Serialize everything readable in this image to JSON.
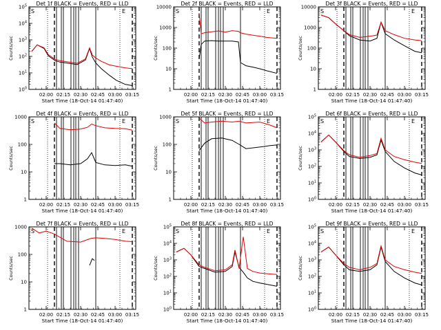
{
  "figure": {
    "xtick_labels": [
      "02:00",
      "02:15",
      "02:30",
      "02:45",
      "03:00",
      "03:15"
    ],
    "xlabel": "Start Time (18-Oct-14 01:47:40)",
    "ylabel": "Counts/sec",
    "colors": {
      "events": "#000000",
      "lld": "#e00000"
    }
  },
  "chart_data": [
    {
      "type": "line",
      "title": "Det 1f BLACK = Events, RED = LLD",
      "yscale": "log",
      "ylim_exp": [
        0,
        5
      ],
      "ytick_labels": [
        "10^0",
        "10^1",
        "10^2",
        "10^3",
        "10^4",
        "10^5"
      ],
      "panel_letters": [
        "S",
        "E"
      ],
      "dotted_lines": [
        2.02,
        3.07
      ],
      "dashed_lines": [
        2.12,
        3.25
      ],
      "solid_lines": [
        2.15,
        2.22,
        2.25,
        2.36,
        2.4,
        2.43,
        2.47,
        2.72
      ],
      "x": [
        1.79,
        1.87,
        1.97,
        2.03,
        2.13,
        2.2,
        2.33,
        2.45,
        2.57,
        2.63,
        2.67,
        2.72,
        2.8,
        2.92,
        3.02,
        3.15,
        3.25
      ],
      "series": [
        {
          "values": [
            200,
            500,
            300,
            110,
            55,
            45,
            38,
            32,
            60,
            300,
            90,
            40,
            18,
            7,
            3.5,
            2,
            1.7
          ]
        },
        {
          "values": [
            200,
            500,
            330,
            130,
            65,
            55,
            45,
            38,
            70,
            330,
            120,
            80,
            50,
            30,
            25,
            20,
            18
          ]
        }
      ]
    },
    {
      "type": "line",
      "title": "Det 2f BLACK = Events, RED = LLD",
      "yscale": "log",
      "ylim_exp": [
        0,
        4
      ],
      "ytick_labels": [
        "1",
        "10",
        "100",
        "1000",
        "10000"
      ],
      "panel_letters": [
        "S",
        "E"
      ],
      "dotted_lines": [
        2.02,
        3.07
      ],
      "dashed_lines": [
        2.12,
        3.25
      ],
      "solid_lines": [
        2.15,
        2.22,
        2.25,
        2.36,
        2.4,
        2.43,
        2.47,
        2.72
      ],
      "x": [
        2.12,
        2.15,
        2.2,
        2.3,
        2.4,
        2.5,
        2.6,
        2.69,
        2.72,
        2.8,
        2.9,
        3.0,
        3.1,
        3.25
      ],
      "series": [
        {
          "values": [
            30,
            150,
            220,
            230,
            220,
            220,
            220,
            200,
            20,
            14,
            12,
            10,
            8,
            6
          ]
        },
        {
          "values": [
            5000,
            500,
            560,
            620,
            680,
            600,
            700,
            650,
            550,
            480,
            420,
            380,
            330,
            300
          ]
        }
      ]
    },
    {
      "type": "line",
      "title": "Det 3f BLACK = Events, RED = LLD",
      "yscale": "log",
      "ylim_exp": [
        0,
        4
      ],
      "ytick_labels": [
        "1",
        "10",
        "100",
        "1000",
        "10000"
      ],
      "panel_letters": [
        "S",
        "E"
      ],
      "dotted_lines": [
        2.02,
        3.07
      ],
      "dashed_lines": [
        2.12,
        3.25
      ],
      "solid_lines": [
        2.15,
        2.22,
        2.25,
        2.36,
        2.4,
        2.43,
        2.47,
        2.72
      ],
      "x": [
        1.79,
        1.9,
        2.0,
        2.12,
        2.2,
        2.35,
        2.5,
        2.6,
        2.66,
        2.72,
        2.85,
        3.0,
        3.15,
        3.25
      ],
      "series": [
        {
          "values": [
            4000,
            3000,
            1500,
            700,
            400,
            250,
            220,
            300,
            1800,
            500,
            250,
            130,
            70,
            60
          ]
        },
        {
          "values": [
            4000,
            3000,
            1500,
            700,
            450,
            330,
            380,
            430,
            1800,
            700,
            450,
            300,
            250,
            230
          ]
        }
      ]
    },
    {
      "type": "line",
      "title": "Det 4f BLACK = Events, RED = LLD",
      "yscale": "log",
      "ylim_exp": [
        0,
        3
      ],
      "ytick_labels": [
        "1",
        "10",
        "100",
        "1000"
      ],
      "panel_letters": [
        "S",
        "E"
      ],
      "dotted_lines": [
        2.02,
        3.07
      ],
      "dashed_lines": [
        2.12,
        3.25
      ],
      "solid_lines": [
        2.15,
        2.22,
        2.25,
        2.36,
        2.4,
        2.43,
        2.47,
        2.72
      ],
      "x": [
        2.12,
        2.2,
        2.35,
        2.5,
        2.6,
        2.66,
        2.72,
        2.85,
        3.0,
        3.15,
        3.25
      ],
      "series": [
        {
          "values": [
            20,
            20,
            18,
            20,
            30,
            50,
            22,
            18,
            17,
            18,
            16
          ]
        },
        {
          "values": [
            600,
            380,
            340,
            360,
            420,
            550,
            480,
            400,
            380,
            370,
            330
          ]
        }
      ]
    },
    {
      "type": "line",
      "title": "Det 5f BLACK = Events, RED = LLD",
      "yscale": "log",
      "ylim_exp": [
        0,
        3
      ],
      "ytick_labels": [
        "1",
        "10",
        "100",
        "1000"
      ],
      "panel_letters": [
        "S",
        "E"
      ],
      "dotted_lines": [
        2.02,
        3.07
      ],
      "dashed_lines": [
        2.12,
        3.25
      ],
      "solid_lines": [
        2.15,
        2.22,
        2.25,
        2.36,
        2.4,
        2.43,
        2.47,
        2.72
      ],
      "x": [
        2.12,
        2.2,
        2.3,
        2.45,
        2.6,
        2.7,
        2.8,
        3.0,
        3.15,
        3.25
      ],
      "series": [
        {
          "values": [
            60,
            110,
            160,
            170,
            140,
            100,
            70,
            80,
            90,
            95
          ]
        },
        {
          "values": [
            900,
            600,
            650,
            700,
            650,
            700,
            600,
            650,
            500,
            400
          ]
        }
      ]
    },
    {
      "type": "line",
      "title": "Det 6f BLACK = Events, RED = LLD",
      "yscale": "log",
      "ylim_exp": [
        0,
        5
      ],
      "ytick_labels": [
        "10^0",
        "10^1",
        "10^2",
        "10^3",
        "10^4",
        "10^5"
      ],
      "panel_letters": [
        "S",
        "E"
      ],
      "dotted_lines": [
        2.02,
        3.07
      ],
      "dashed_lines": [
        2.12,
        3.25
      ],
      "solid_lines": [
        2.15,
        2.22,
        2.25,
        2.36,
        2.4,
        2.43,
        2.47,
        2.72
      ],
      "x": [
        1.79,
        1.9,
        2.0,
        2.12,
        2.2,
        2.35,
        2.5,
        2.6,
        2.66,
        2.72,
        2.85,
        3.0,
        3.15,
        3.25
      ],
      "series": [
        {
          "values": [
            3000,
            8000,
            3000,
            800,
            400,
            300,
            350,
            500,
            4000,
            800,
            200,
            80,
            40,
            30
          ]
        },
        {
          "values": [
            3000,
            8000,
            3000,
            900,
            500,
            350,
            450,
            600,
            5000,
            1000,
            400,
            250,
            180,
            150
          ]
        }
      ]
    },
    {
      "type": "line",
      "title": "Det 7f BLACK = Events, RED = LLD",
      "yscale": "log",
      "ylim_exp": [
        0,
        3
      ],
      "ytick_labels": [
        "1",
        "10",
        "100",
        "1000"
      ],
      "panel_letters": [
        "S",
        "E"
      ],
      "dotted_lines": [
        2.02,
        3.07
      ],
      "dashed_lines": [
        2.12,
        3.25
      ],
      "solid_lines": [
        2.15,
        2.22,
        2.25,
        2.36,
        2.4,
        2.43,
        2.47,
        2.72
      ],
      "x": [
        1.79,
        1.9,
        2.0,
        2.12,
        2.3,
        2.5,
        2.65,
        2.72,
        2.85,
        3.0,
        3.15,
        3.25
      ],
      "series": [
        {
          "x": [
            2.63,
            2.67,
            2.7
          ],
          "values": [
            40,
            70,
            60
          ]
        },
        {
          "values": [
            900,
            600,
            700,
            550,
            300,
            280,
            380,
            400,
            380,
            350,
            300,
            290
          ]
        }
      ]
    },
    {
      "type": "line",
      "title": "Det 8f BLACK = Events, RED = LLD",
      "yscale": "log",
      "ylim_exp": [
        0,
        5
      ],
      "ytick_labels": [
        "10^0",
        "10^1",
        "10^2",
        "10^3",
        "10^4",
        "10^5"
      ],
      "panel_letters": [
        "S",
        "E"
      ],
      "dotted_lines": [
        2.02,
        3.07
      ],
      "dashed_lines": [
        2.12,
        3.25
      ],
      "solid_lines": [
        2.15,
        2.22,
        2.25,
        2.36,
        2.4,
        2.43,
        2.47,
        2.72
      ],
      "x": [
        1.79,
        1.9,
        2.0,
        2.12,
        2.2,
        2.35,
        2.5,
        2.6,
        2.64,
        2.7,
        2.76,
        2.82,
        2.9,
        3.0,
        3.15,
        3.25
      ],
      "series": [
        {
          "values": [
            3000,
            5000,
            2000,
            400,
            300,
            180,
            200,
            400,
            3000,
            350,
            180,
            80,
            50,
            40,
            30,
            25
          ]
        },
        {
          "values": [
            3000,
            5000,
            2000,
            500,
            350,
            220,
            250,
            500,
            4000,
            300,
            25000,
            300,
            200,
            160,
            140,
            130
          ]
        }
      ]
    },
    {
      "type": "line",
      "title": "Det 9f BLACK = Events, RED = LLD",
      "yscale": "log",
      "ylim_exp": [
        0,
        5
      ],
      "ytick_labels": [
        "10^0",
        "10^1",
        "10^2",
        "10^3",
        "10^4",
        "10^5"
      ],
      "panel_letters": [
        "S",
        "E"
      ],
      "dotted_lines": [
        2.02,
        3.07
      ],
      "dashed_lines": [
        2.12,
        3.25
      ],
      "solid_lines": [
        2.15,
        2.22,
        2.25,
        2.36,
        2.4,
        2.43,
        2.47,
        2.72
      ],
      "x": [
        1.79,
        1.9,
        2.0,
        2.12,
        2.2,
        2.35,
        2.5,
        2.6,
        2.66,
        2.72,
        2.85,
        3.0,
        3.15,
        3.25
      ],
      "series": [
        {
          "values": [
            3000,
            6000,
            2000,
            500,
            250,
            200,
            250,
            500,
            6000,
            800,
            200,
            80,
            40,
            30
          ]
        },
        {
          "values": [
            3000,
            6000,
            2000,
            600,
            350,
            250,
            350,
            600,
            7000,
            1000,
            400,
            250,
            180,
            150
          ]
        }
      ]
    }
  ]
}
